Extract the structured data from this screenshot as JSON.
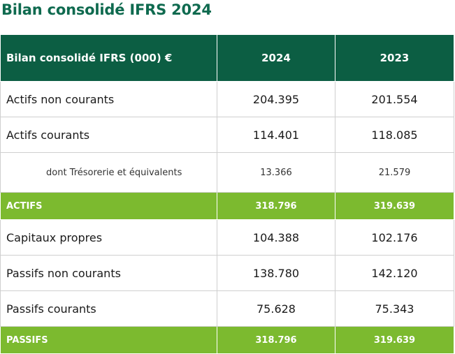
{
  "title": "Bilan consolidé IFRS 2024",
  "colors": {
    "title": "#0f6a4f",
    "header_bg": "#0c5e43",
    "total_bg": "#7cba2f"
  },
  "table": {
    "header": {
      "label": "Bilan consolidé IFRS (000) €",
      "y1": "2024",
      "y2": "2023"
    },
    "rows": [
      {
        "label": "Actifs non courants",
        "y1": "204.395",
        "y2": "201.554"
      },
      {
        "label": "Actifs courants",
        "y1": "114.401",
        "y2": "118.085"
      },
      {
        "label": "dont Trésorerie et équivalents",
        "y1": "13.366",
        "y2": "21.579"
      },
      {
        "label": "ACTIFS",
        "y1": "318.796",
        "y2": "319.639"
      },
      {
        "label": "Capitaux propres",
        "y1": "104.388",
        "y2": "102.176"
      },
      {
        "label": "Passifs non courants",
        "y1": "138.780",
        "y2": "142.120"
      },
      {
        "label": "Passifs courants",
        "y1": "75.628",
        "y2": "75.343"
      },
      {
        "label": "PASSIFS",
        "y1": "318.796",
        "y2": "319.639"
      }
    ]
  }
}
